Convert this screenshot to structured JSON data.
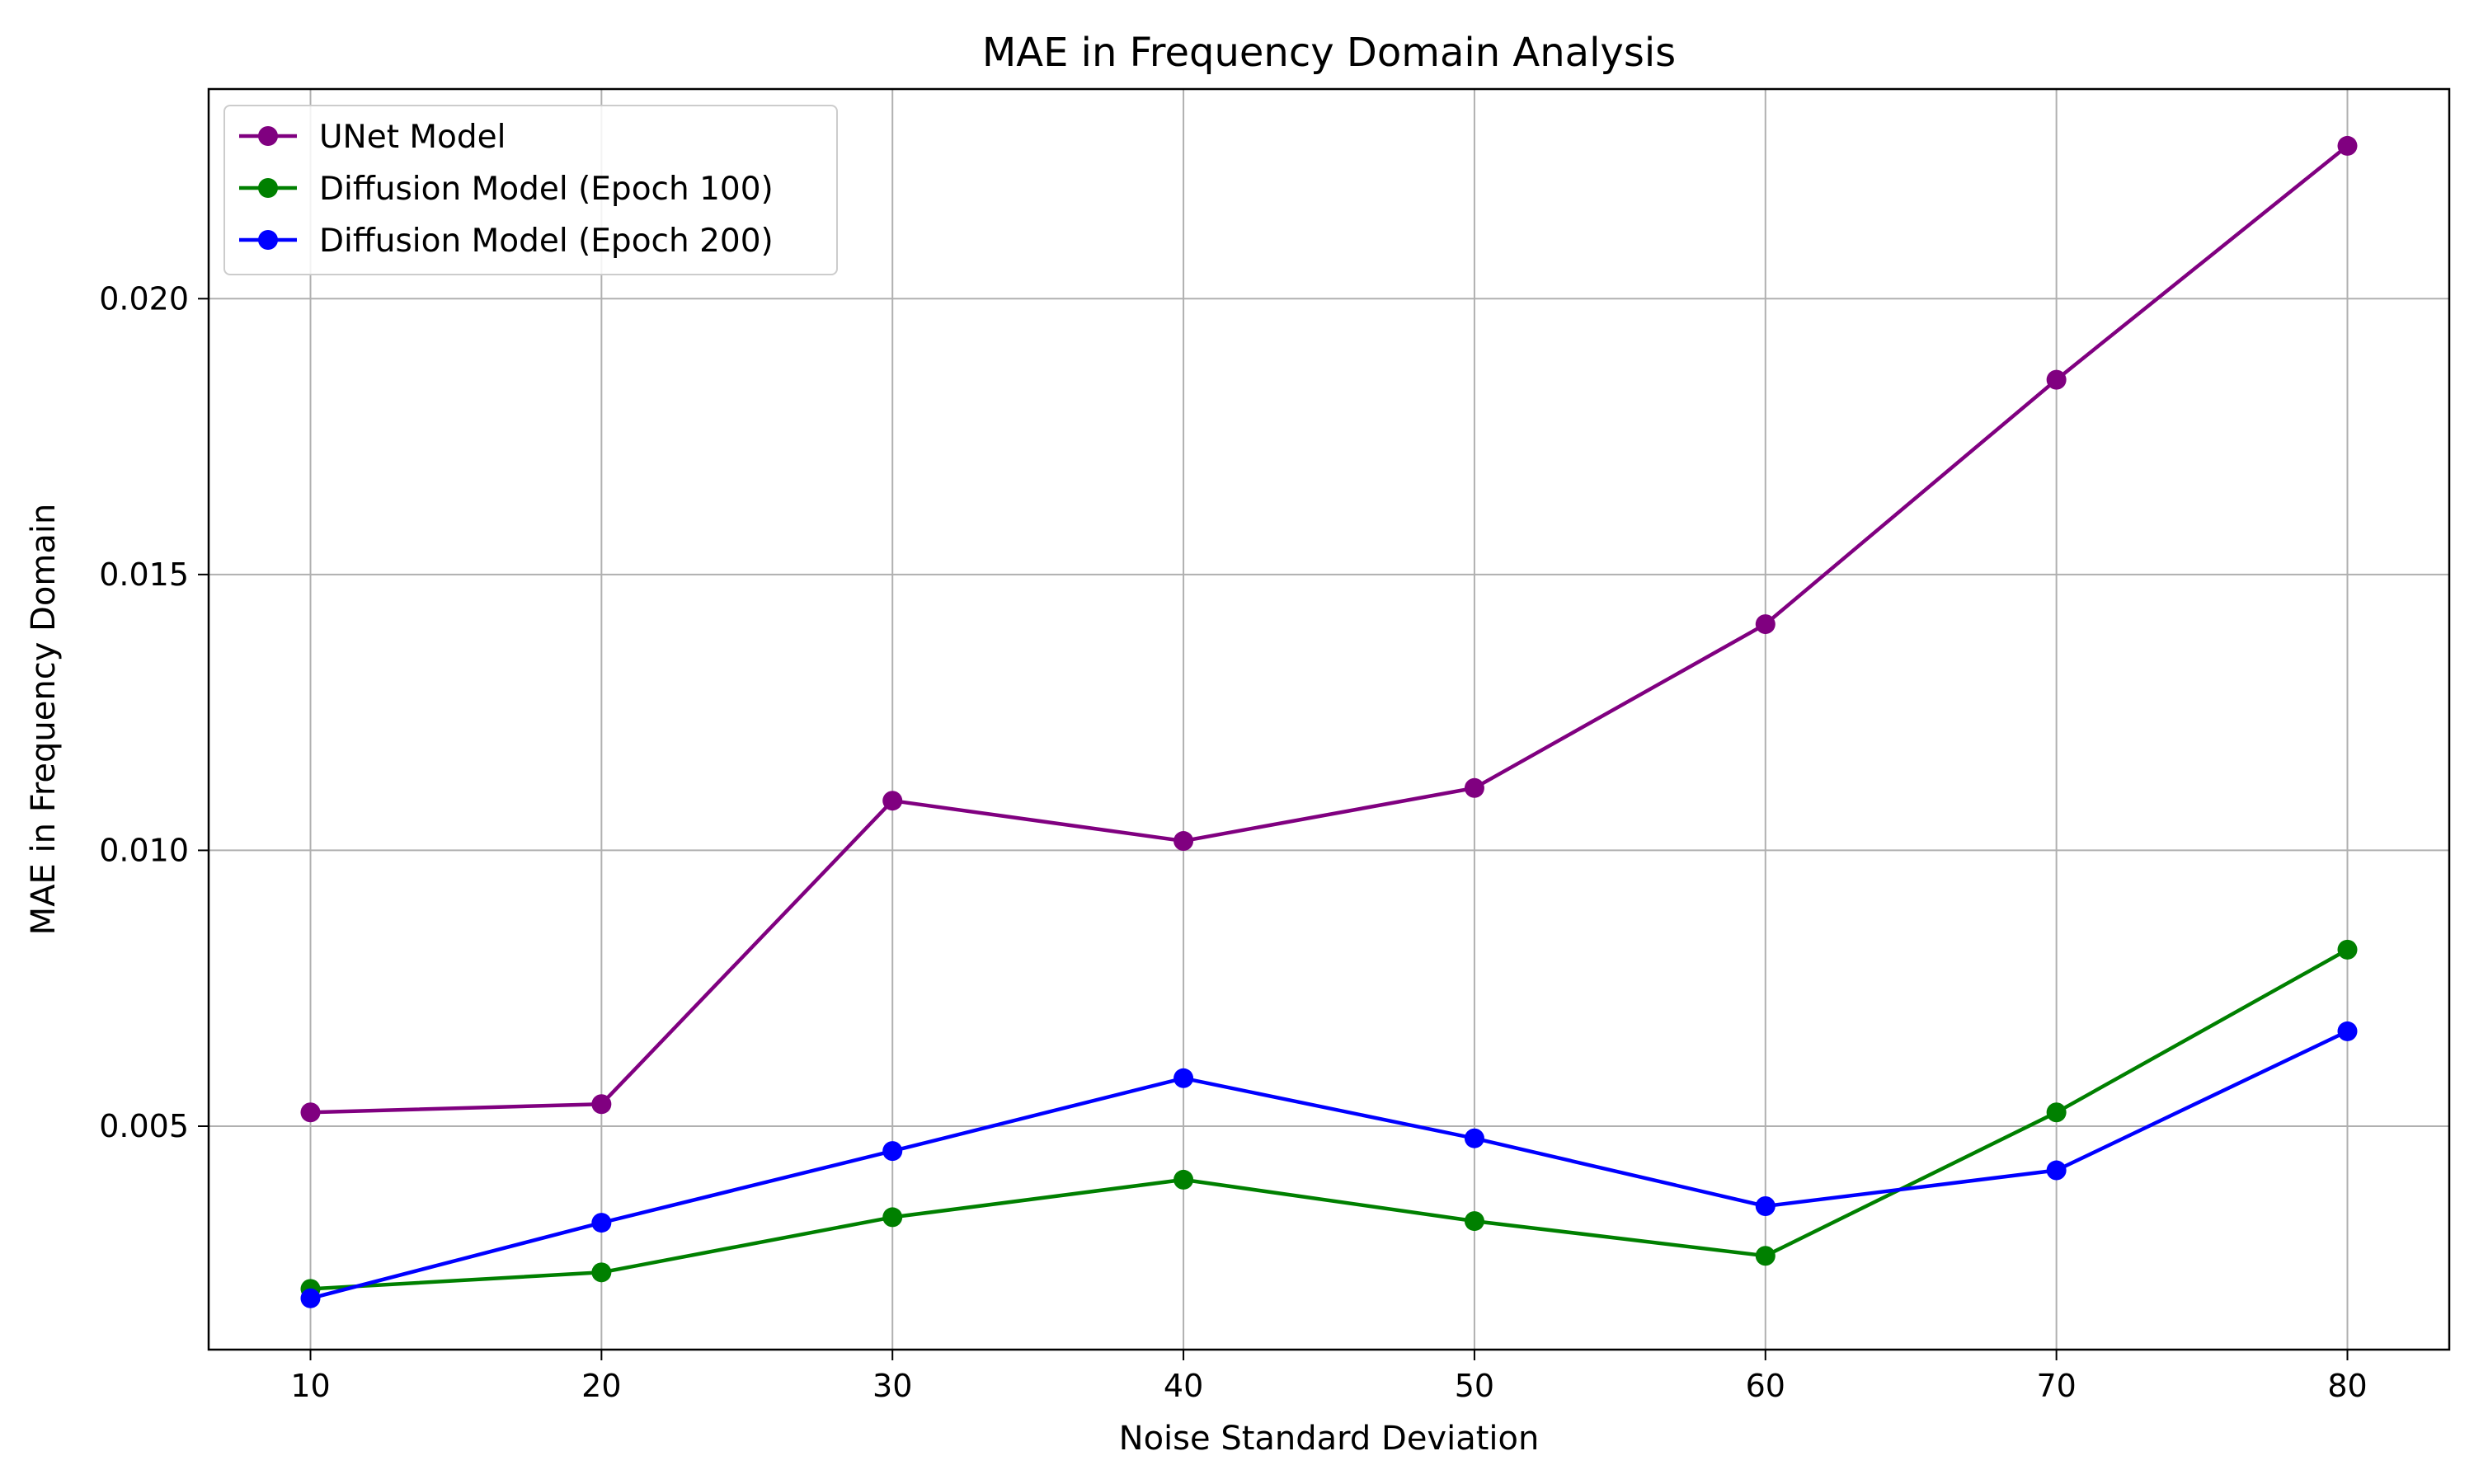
{
  "chart_data": {
    "type": "line",
    "title": "MAE in Frequency Domain Analysis",
    "xlabel": "Noise Standard Deviation",
    "ylabel": "MAE in Frequency Domain",
    "x": [
      10,
      20,
      30,
      40,
      50,
      60,
      70,
      80
    ],
    "xlim": [
      6.5,
      83.5
    ],
    "ylim": [
      0.00095,
      0.0238
    ],
    "xticks": [
      10,
      20,
      30,
      40,
      50,
      60,
      70,
      80
    ],
    "xtick_labels": [
      "10",
      "20",
      "30",
      "40",
      "50",
      "60",
      "70",
      "80"
    ],
    "yticks": [
      0.005,
      0.01,
      0.015,
      0.02
    ],
    "ytick_labels": [
      "0.005",
      "0.010",
      "0.015",
      "0.020"
    ],
    "grid": true,
    "legend_position": "top-left",
    "series": [
      {
        "name": "UNet Model",
        "color": "#800080",
        "values": [
          0.00525,
          0.0054,
          0.0109,
          0.01017,
          0.01113,
          0.0141,
          0.01853,
          0.02277
        ]
      },
      {
        "name": "Diffusion Model (Epoch 100)",
        "color": "#008000",
        "values": [
          0.00205,
          0.00235,
          0.00335,
          0.00403,
          0.00328,
          0.00265,
          0.00525,
          0.0082
        ]
      },
      {
        "name": "Diffusion Model (Epoch 200)",
        "color": "#0000ff",
        "values": [
          0.00188,
          0.00325,
          0.00455,
          0.00587,
          0.00478,
          0.00355,
          0.0042,
          0.00672
        ]
      }
    ]
  }
}
